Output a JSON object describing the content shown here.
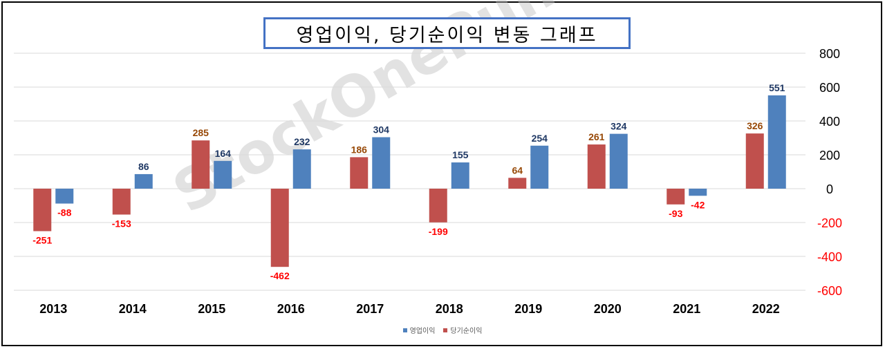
{
  "chart_data": {
    "type": "bar",
    "title": "영업이익, 당기순이익 변동 그래프",
    "categories": [
      "2013",
      "2014",
      "2015",
      "2016",
      "2017",
      "2018",
      "2019",
      "2020",
      "2021",
      "2022"
    ],
    "series": [
      {
        "name": "당기순이익",
        "color": "#c0504d",
        "values": [
          -251,
          -153,
          285,
          -462,
          186,
          -199,
          64,
          261,
          -93,
          326
        ],
        "labels": [
          "-251",
          "-153",
          "285",
          "-462",
          "186",
          "-199",
          "64",
          "261",
          "-93",
          "326"
        ]
      },
      {
        "name": "영업이익",
        "color": "#4f81bd",
        "values": [
          -88,
          86,
          164,
          232,
          304,
          155,
          254,
          324,
          -42,
          551
        ],
        "labels": [
          "-88",
          "86",
          "164",
          "232",
          "304",
          "155",
          "254",
          "324",
          "-42",
          "551"
        ]
      }
    ],
    "ylim": [
      -600,
      800
    ],
    "yticks": [
      800,
      600,
      400,
      200,
      0,
      -200,
      -400,
      -600
    ],
    "ytick_labels": [
      "800",
      "600",
      "400",
      "200",
      "0",
      "-200",
      "-400",
      "-600"
    ],
    "y_axis_side": "right",
    "grid": true,
    "legend_position": "bottom",
    "legend_order": [
      "영업이익",
      "당기순이익"
    ],
    "colors": {
      "positive_label_net": "#974806",
      "positive_label_op": "#1f3864",
      "negative_label": "#ff0000",
      "negative_tick": "#ff0000",
      "positive_tick": "#000000",
      "grid": "#d9d9d9"
    },
    "watermark": "StockOnePunch"
  }
}
